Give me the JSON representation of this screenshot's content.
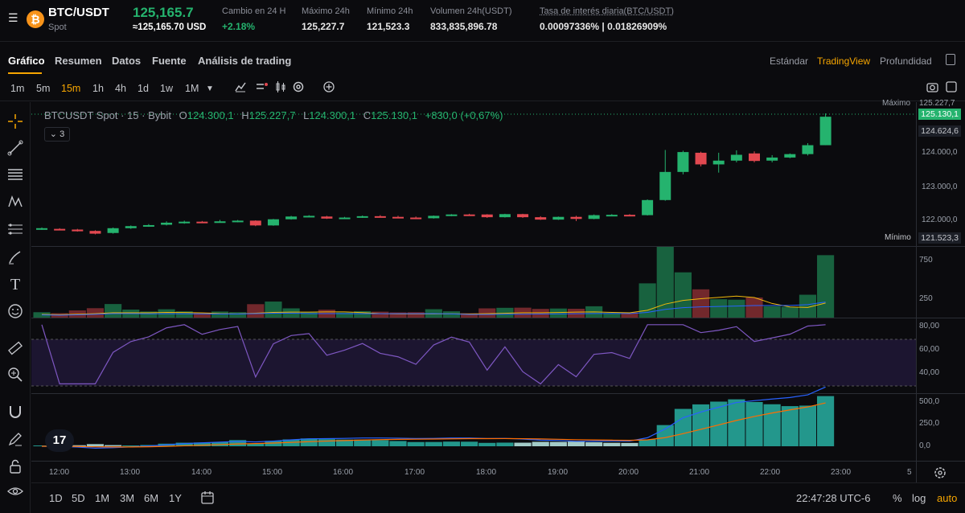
{
  "header": {
    "pair": "BTC/USDT",
    "market": "Spot",
    "coin_letter": "₿",
    "last_price": "125,165.7",
    "last_price_usd": "≈125,165.70 USD",
    "stats": [
      {
        "label": "Cambio en 24 H",
        "value": "+2.18%",
        "color": "green"
      },
      {
        "label": "Máximo 24h",
        "value": "125,227.7",
        "color": "white"
      },
      {
        "label": "Mínimo 24h",
        "value": "121,523.3",
        "color": "white"
      },
      {
        "label": "Volumen 24h(USDT)",
        "value": "833,835,896.78",
        "color": "white"
      },
      {
        "label": "Tasa de interés diaria(BTC/USDT)",
        "value": "0.00097336% | 0.01826909%",
        "color": "white"
      }
    ]
  },
  "tabs": [
    "Gráfico",
    "Resumen",
    "Datos",
    "Fuente",
    "Análisis de trading"
  ],
  "view_tabs": [
    "Estándar",
    "TradingView",
    "Profundidad"
  ],
  "timeframes": [
    "1m",
    "5m",
    "15m",
    "1h",
    "4h",
    "1d",
    "1w",
    "1M"
  ],
  "active_timeframe": "15m",
  "legend": {
    "symbol": "BTCUSDT Spot · 15 · Bybit",
    "o": "O",
    "o_val": "124.300,1",
    "h": "H",
    "h_val": "125.227,7",
    "l": "L",
    "l_val": "124.300,1",
    "c": "C",
    "c_val": "125.130,1",
    "change": "+830,0 (+0,67%)",
    "indicator_count": "3"
  },
  "price_axis": {
    "ticks": [
      "124.000,0",
      "123.000,0",
      "122.000,0"
    ],
    "max_label": "Máximo",
    "max_value": "125.227,7",
    "current": "125.130,1",
    "countdown_price": "124.624,6",
    "min_label": "Mínimo",
    "min_value": "121.523,3"
  },
  "volume_axis": [
    "750",
    "250"
  ],
  "rsi_axis": [
    "80,00",
    "60,00",
    "40,00"
  ],
  "macd_axis": [
    "500,0",
    "250,0",
    "0,0"
  ],
  "time_axis": [
    "12:00",
    "13:00",
    "14:00",
    "15:00",
    "16:00",
    "17:00",
    "18:00",
    "19:00",
    "20:00",
    "21:00",
    "22:00",
    "23:00"
  ],
  "time_axis_end": "5",
  "bottom": {
    "ranges": [
      "1D",
      "5D",
      "1M",
      "3M",
      "6M",
      "1Y"
    ],
    "clock": "22:47:28 UTC-6",
    "percent": "%",
    "log": "log",
    "auto": "auto"
  },
  "tv_logo": "17",
  "colors": {
    "up": "#25b36e",
    "down": "#e24850",
    "accent": "#f7a600",
    "rsi": "#7e57c2",
    "macd_line": "#2962ff",
    "signal_line": "#ff6d00"
  },
  "chart_data": {
    "type": "candlestick",
    "interval": "15m",
    "candles": [
      {
        "o": 121860,
        "h": 121900,
        "l": 121830,
        "c": 121880
      },
      {
        "o": 121860,
        "h": 121880,
        "l": 121840,
        "c": 121850
      },
      {
        "o": 121840,
        "h": 121860,
        "l": 121780,
        "c": 121790
      },
      {
        "o": 121800,
        "h": 121820,
        "l": 121700,
        "c": 121720
      },
      {
        "o": 121740,
        "h": 121900,
        "l": 121720,
        "c": 121880
      },
      {
        "o": 121880,
        "h": 121960,
        "l": 121860,
        "c": 121940
      },
      {
        "o": 121940,
        "h": 122000,
        "l": 121920,
        "c": 121970
      },
      {
        "o": 121980,
        "h": 122080,
        "l": 121960,
        "c": 122040
      },
      {
        "o": 122040,
        "h": 122100,
        "l": 122010,
        "c": 122070
      },
      {
        "o": 122070,
        "h": 122090,
        "l": 122040,
        "c": 122050
      },
      {
        "o": 122050,
        "h": 122120,
        "l": 122040,
        "c": 122080
      },
      {
        "o": 122080,
        "h": 122120,
        "l": 122050,
        "c": 122100
      },
      {
        "o": 122100,
        "h": 122110,
        "l": 121940,
        "c": 121960
      },
      {
        "o": 121960,
        "h": 122150,
        "l": 121950,
        "c": 122140
      },
      {
        "o": 122140,
        "h": 122240,
        "l": 122130,
        "c": 122220
      },
      {
        "o": 122220,
        "h": 122260,
        "l": 122200,
        "c": 122240
      },
      {
        "o": 122220,
        "h": 122240,
        "l": 122150,
        "c": 122160
      },
      {
        "o": 122170,
        "h": 122210,
        "l": 122160,
        "c": 122190
      },
      {
        "o": 122190,
        "h": 122250,
        "l": 122180,
        "c": 122230
      },
      {
        "o": 122230,
        "h": 122260,
        "l": 122190,
        "c": 122200
      },
      {
        "o": 122210,
        "h": 122240,
        "l": 122180,
        "c": 122190
      },
      {
        "o": 122190,
        "h": 122220,
        "l": 122150,
        "c": 122170
      },
      {
        "o": 122170,
        "h": 122250,
        "l": 122160,
        "c": 122240
      },
      {
        "o": 122240,
        "h": 122290,
        "l": 122230,
        "c": 122280
      },
      {
        "o": 122280,
        "h": 122300,
        "l": 122260,
        "c": 122270
      },
      {
        "o": 122280,
        "h": 122290,
        "l": 122180,
        "c": 122200
      },
      {
        "o": 122200,
        "h": 122300,
        "l": 122190,
        "c": 122290
      },
      {
        "o": 122290,
        "h": 122300,
        "l": 122180,
        "c": 122200
      },
      {
        "o": 122200,
        "h": 122230,
        "l": 122120,
        "c": 122130
      },
      {
        "o": 122130,
        "h": 122220,
        "l": 122120,
        "c": 122210
      },
      {
        "o": 122210,
        "h": 122240,
        "l": 122090,
        "c": 122150
      },
      {
        "o": 122150,
        "h": 122280,
        "l": 122140,
        "c": 122260
      },
      {
        "o": 122260,
        "h": 122290,
        "l": 122230,
        "c": 122270
      },
      {
        "o": 122270,
        "h": 122290,
        "l": 122230,
        "c": 122250
      },
      {
        "o": 122260,
        "h": 122720,
        "l": 122250,
        "c": 122700
      },
      {
        "o": 122700,
        "h": 124160,
        "l": 122680,
        "c": 123520
      },
      {
        "o": 123520,
        "h": 124140,
        "l": 123450,
        "c": 124100
      },
      {
        "o": 124080,
        "h": 124110,
        "l": 123680,
        "c": 123740
      },
      {
        "o": 123740,
        "h": 124080,
        "l": 123500,
        "c": 123850
      },
      {
        "o": 123850,
        "h": 124150,
        "l": 123800,
        "c": 124020
      },
      {
        "o": 124060,
        "h": 124120,
        "l": 123800,
        "c": 123840
      },
      {
        "o": 123850,
        "h": 124010,
        "l": 123800,
        "c": 123940
      },
      {
        "o": 123940,
        "h": 124060,
        "l": 123920,
        "c": 124040
      },
      {
        "o": 124040,
        "h": 124360,
        "l": 124000,
        "c": 124300
      },
      {
        "o": 124300,
        "h": 125227.7,
        "l": 124300,
        "c": 125130.1
      }
    ],
    "volume_ticks": [
      250,
      750
    ],
    "rsi_ticks": [
      40,
      60,
      80
    ],
    "macd_ticks": [
      0,
      250,
      500
    ]
  }
}
